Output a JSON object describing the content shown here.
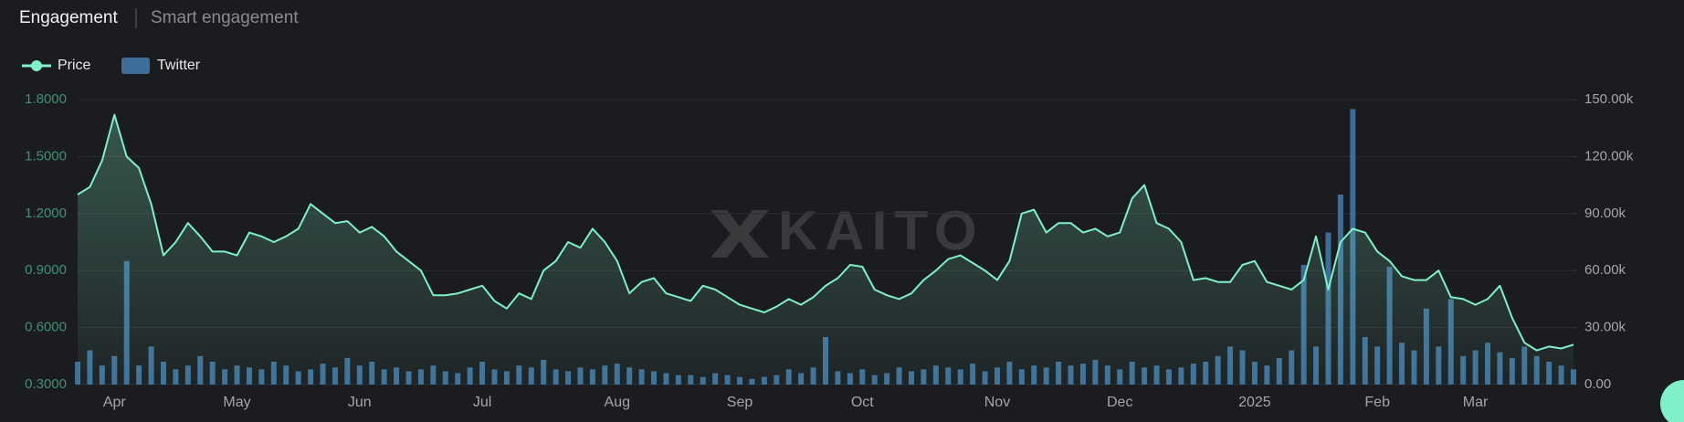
{
  "tabs": [
    "Engagement",
    "Smart engagement"
  ],
  "chart_data": {
    "type": "combo",
    "watermark": "KAITO",
    "legend": "top-left",
    "grid": true,
    "categories": [
      null,
      null,
      null,
      "Apr",
      null,
      null,
      null,
      null,
      null,
      null,
      null,
      null,
      null,
      "May",
      null,
      null,
      null,
      null,
      null,
      null,
      null,
      null,
      null,
      "Jun",
      null,
      null,
      null,
      null,
      null,
      null,
      null,
      null,
      null,
      "Jul",
      null,
      null,
      null,
      null,
      null,
      null,
      null,
      null,
      null,
      null,
      "Aug",
      null,
      null,
      null,
      null,
      null,
      null,
      null,
      null,
      null,
      "Sep",
      null,
      null,
      null,
      null,
      null,
      null,
      null,
      null,
      null,
      "Oct",
      null,
      null,
      null,
      null,
      null,
      null,
      null,
      null,
      null,
      null,
      "Nov",
      null,
      null,
      null,
      null,
      null,
      null,
      null,
      null,
      null,
      "Dec",
      null,
      null,
      null,
      null,
      null,
      null,
      null,
      null,
      null,
      null,
      "2025",
      null,
      null,
      null,
      null,
      null,
      null,
      null,
      null,
      null,
      "Feb",
      null,
      null,
      null,
      null,
      null,
      null,
      null,
      "Mar",
      null,
      null,
      null,
      null,
      null,
      null,
      null,
      null
    ],
    "series": [
      {
        "name": "Price",
        "type": "line",
        "color": "#7ff0c8",
        "values": [
          1.3,
          1.34,
          1.48,
          1.72,
          1.5,
          1.44,
          1.25,
          0.98,
          1.05,
          1.15,
          1.08,
          1.0,
          1.0,
          0.98,
          1.1,
          1.08,
          1.05,
          1.08,
          1.12,
          1.25,
          1.2,
          1.15,
          1.16,
          1.1,
          1.13,
          1.08,
          1.0,
          0.95,
          0.9,
          0.77,
          0.77,
          0.78,
          0.8,
          0.82,
          0.74,
          0.7,
          0.78,
          0.75,
          0.9,
          0.95,
          1.05,
          1.02,
          1.12,
          1.05,
          0.95,
          0.78,
          0.84,
          0.86,
          0.78,
          0.76,
          0.74,
          0.82,
          0.8,
          0.76,
          0.72,
          0.7,
          0.68,
          0.71,
          0.75,
          0.72,
          0.76,
          0.82,
          0.86,
          0.93,
          0.92,
          0.8,
          0.77,
          0.75,
          0.78,
          0.85,
          0.9,
          0.96,
          0.98,
          0.94,
          0.9,
          0.85,
          0.95,
          1.2,
          1.22,
          1.1,
          1.15,
          1.15,
          1.1,
          1.12,
          1.08,
          1.1,
          1.28,
          1.35,
          1.15,
          1.12,
          1.05,
          0.85,
          0.86,
          0.84,
          0.84,
          0.93,
          0.95,
          0.84,
          0.82,
          0.8,
          0.85,
          1.08,
          0.8,
          1.05,
          1.12,
          1.1,
          1.0,
          0.95,
          0.87,
          0.85,
          0.85,
          0.9,
          0.76,
          0.75,
          0.72,
          0.75,
          0.82,
          0.65,
          0.52,
          0.48,
          0.5,
          0.49,
          0.51
        ]
      },
      {
        "name": "Twitter",
        "type": "bar",
        "axis": "y2",
        "color": "#3e6e98",
        "values": [
          12000,
          18000,
          10000,
          15000,
          65000,
          10000,
          20000,
          12000,
          8000,
          10000,
          15000,
          12000,
          8000,
          10000,
          9000,
          8000,
          12000,
          10000,
          7000,
          8000,
          11000,
          9000,
          14000,
          10000,
          12000,
          8000,
          9000,
          7000,
          8000,
          10000,
          7000,
          6000,
          9000,
          12000,
          8000,
          7000,
          10000,
          9000,
          13000,
          8000,
          7000,
          9000,
          8000,
          10000,
          11000,
          9000,
          8000,
          7000,
          6000,
          5000,
          5000,
          4000,
          6000,
          5000,
          4000,
          3000,
          4000,
          5000,
          8000,
          6000,
          9000,
          25000,
          7000,
          6000,
          8000,
          5000,
          6000,
          9000,
          7000,
          8000,
          10000,
          9000,
          8000,
          11000,
          7000,
          9000,
          12000,
          8000,
          10000,
          9000,
          12000,
          10000,
          11000,
          13000,
          10000,
          8000,
          12000,
          9000,
          10000,
          8000,
          9000,
          11000,
          12000,
          15000,
          20000,
          18000,
          12000,
          10000,
          14000,
          18000,
          63000,
          20000,
          80000,
          100000,
          145000,
          25000,
          20000,
          62000,
          22000,
          18000,
          40000,
          20000,
          45000,
          15000,
          18000,
          22000,
          17000,
          14000,
          20000,
          15000,
          12000,
          10000,
          8000
        ]
      }
    ],
    "ylim": [
      0.3,
      1.8
    ],
    "yticks": [
      {
        "value": 0.3,
        "label": "0.3000"
      },
      {
        "value": 0.6,
        "label": "0.6000"
      },
      {
        "value": 0.9,
        "label": "0.9000"
      },
      {
        "value": 1.2,
        "label": "1.2000"
      },
      {
        "value": 1.5,
        "label": "1.5000"
      },
      {
        "value": 1.8,
        "label": "1.8000"
      }
    ],
    "y2lim": [
      0,
      150000
    ],
    "y2ticks": [
      {
        "value": 0,
        "label": "0.00"
      },
      {
        "value": 30000,
        "label": "30.00k"
      },
      {
        "value": 60000,
        "label": "60.00k"
      },
      {
        "value": 90000,
        "label": "90.00k"
      },
      {
        "value": 120000,
        "label": "120.00k"
      },
      {
        "value": 150000,
        "label": "150.00k"
      }
    ]
  }
}
